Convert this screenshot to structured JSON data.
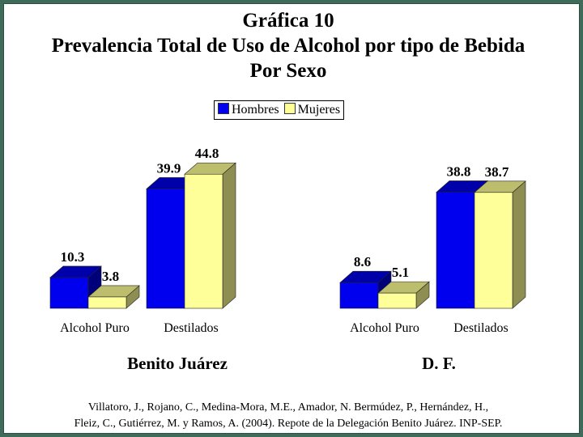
{
  "title": {
    "line1": "Gráfica 10",
    "line2": "Prevalencia Total de Uso de Alcohol por tipo de Bebida",
    "line3": "Por Sexo"
  },
  "legend": {
    "items": [
      {
        "label": "Hombres",
        "color": "#0000ee"
      },
      {
        "label": "Mujeres",
        "color": "#ffff99"
      }
    ]
  },
  "chart_data": [
    {
      "type": "bar",
      "group_label": "Benito Juárez",
      "categories": [
        "Alcohol Puro",
        "Destilados"
      ],
      "series": [
        {
          "name": "Hombres",
          "values": [
            10.3,
            39.9
          ]
        },
        {
          "name": "Mujeres",
          "values": [
            3.8,
            44.8
          ]
        }
      ]
    },
    {
      "type": "bar",
      "group_label": "D. F.",
      "categories": [
        "Alcohol Puro",
        "Destilados"
      ],
      "series": [
        {
          "name": "Hombres",
          "values": [
            8.6,
            38.8
          ]
        },
        {
          "name": "Mujeres",
          "values": [
            5.1,
            38.7
          ]
        }
      ]
    }
  ],
  "footer": {
    "line1": "Villatoro, J., Rojano, C., Medina-Mora, M.E., Amador, N. Bermúdez, P., Hernández, H.,",
    "line2": "Fleiz, C., Gutiérrez, M. y Ramos, A. (2004). Repote de la Delegación Benito Juárez. INP-SEP."
  }
}
